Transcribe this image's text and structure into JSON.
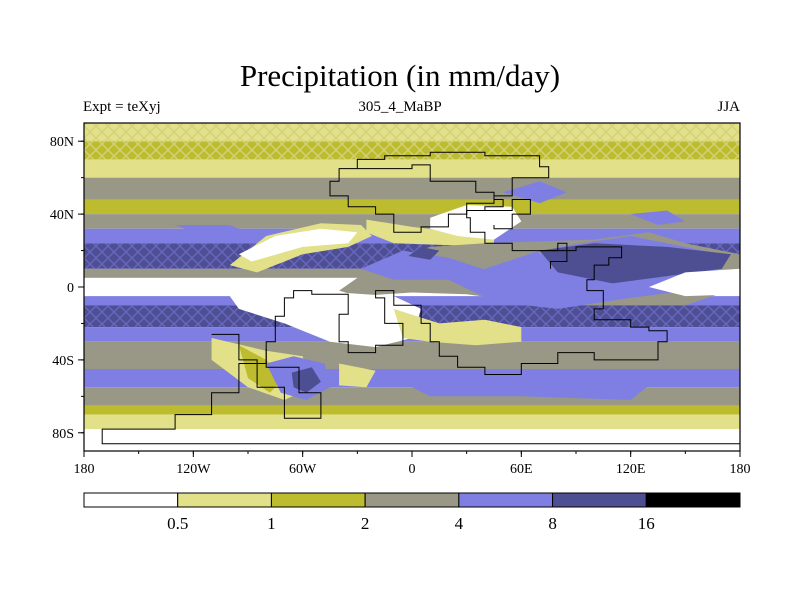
{
  "title": "Precipitation (in mm/day)",
  "left_label": "Expt = teXyj",
  "center_label": "305_4_MaBP",
  "right_label": "JJA",
  "axes": {
    "lon_range": [
      -180,
      180
    ],
    "lat_range": [
      -90,
      90
    ],
    "x_ticks": [
      {
        "value": -180,
        "label": "180"
      },
      {
        "value": -120,
        "label": "120W"
      },
      {
        "value": -60,
        "label": "60W"
      },
      {
        "value": 0,
        "label": "0"
      },
      {
        "value": 60,
        "label": "60E"
      },
      {
        "value": 120,
        "label": "120E"
      },
      {
        "value": 180,
        "label": "180"
      }
    ],
    "y_ticks": [
      {
        "value": 80,
        "label": "80N"
      },
      {
        "value": 40,
        "label": "40N"
      },
      {
        "value": 0,
        "label": "0"
      },
      {
        "value": -40,
        "label": "40S"
      },
      {
        "value": -80,
        "label": "80S"
      }
    ]
  },
  "colorbar": {
    "colors": [
      "#ffffff",
      "#e2e18a",
      "#bdbc2e",
      "#999887",
      "#7f7fe3",
      "#4e4e92",
      "#000000"
    ],
    "labels": [
      "0.5",
      "1",
      "2",
      "4",
      "8",
      "16"
    ]
  },
  "levels": [
    0.5,
    1,
    2,
    4,
    8,
    16
  ]
}
